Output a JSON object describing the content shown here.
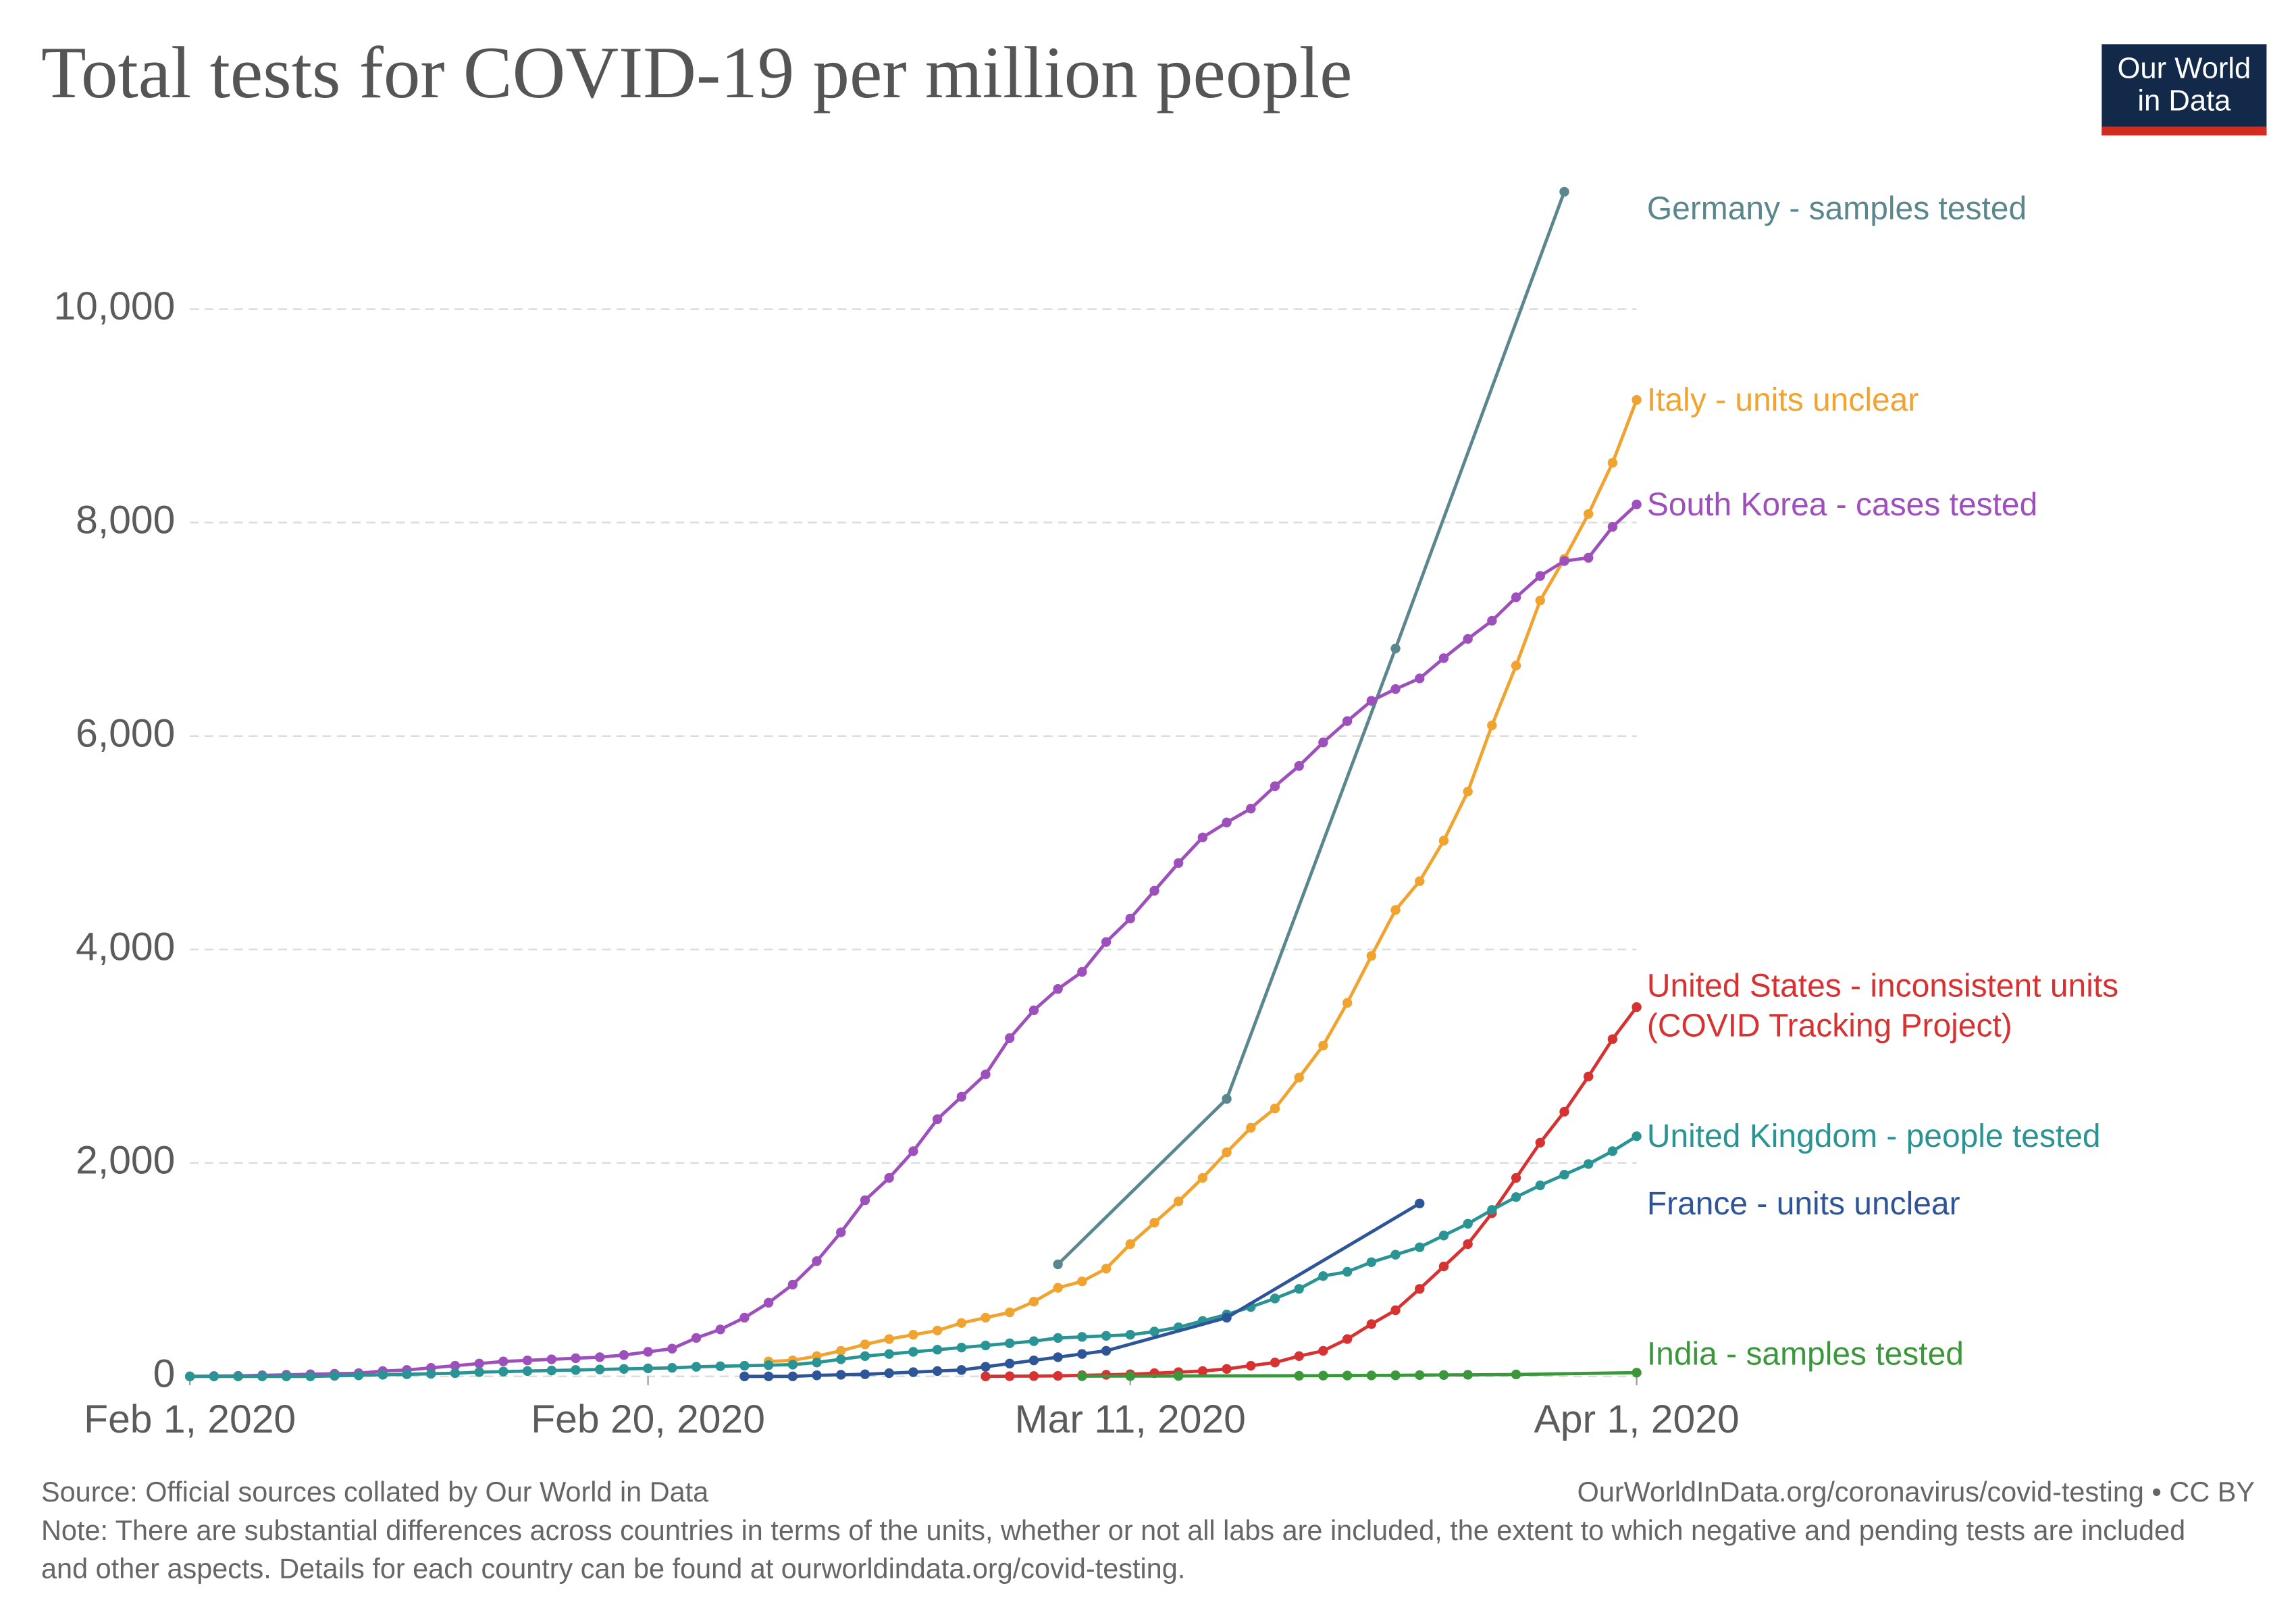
{
  "chart_data": {
    "type": "line",
    "title": "Total tests for COVID-19 per million people",
    "logo": "Our World in Data",
    "source": "Source: Official sources collated by Our World in Data",
    "url": "OurWorldInData.org/coronavirus/covid-testing • CC BY",
    "note": "Note: There are substantial differences across countries in terms of the units, whether or not all labs are included, the extent to which negative and pending tests are included and other aspects. Details for each country can be found at ourworldindata.org/covid-testing.",
    "xlim": [
      "2020-02-01",
      "2020-04-01"
    ],
    "xticks": [
      {
        "value": "2020-02-01",
        "label": "Feb 1, 2020"
      },
      {
        "value": "2020-02-20",
        "label": "Feb 20, 2020"
      },
      {
        "value": "2020-03-11",
        "label": "Mar 11, 2020"
      },
      {
        "value": "2020-04-01",
        "label": "Apr 1, 2020"
      }
    ],
    "ylim": [
      0,
      11400
    ],
    "yticks": [
      0,
      {
        "value": 2000,
        "label": "2,000"
      },
      {
        "value": 4000,
        "label": "4,000"
      },
      {
        "value": 6000,
        "label": "6,000"
      },
      {
        "value": 8000,
        "label": "8,000"
      },
      {
        "value": 10000,
        "label": "10,000"
      }
    ],
    "grid": true,
    "series": [
      {
        "name": "Germany - samples tested",
        "color": "#5a878e",
        "x": [
          "2020-03-08",
          "2020-03-15",
          "2020-03-22",
          "2020-03-29"
        ],
        "values": [
          1050,
          2600,
          6820,
          11100
        ]
      },
      {
        "name": "Italy - units unclear",
        "color": "#f0a32e",
        "x": [
          "2020-02-25",
          "2020-02-26",
          "2020-02-27",
          "2020-02-28",
          "2020-02-29",
          "2020-03-01",
          "2020-03-02",
          "2020-03-03",
          "2020-03-04",
          "2020-03-05",
          "2020-03-06",
          "2020-03-07",
          "2020-03-08",
          "2020-03-09",
          "2020-03-10",
          "2020-03-11",
          "2020-03-12",
          "2020-03-13",
          "2020-03-14",
          "2020-03-15",
          "2020-03-16",
          "2020-03-17",
          "2020-03-18",
          "2020-03-19",
          "2020-03-20",
          "2020-03-21",
          "2020-03-22",
          "2020-03-23",
          "2020-03-24",
          "2020-03-25",
          "2020-03-26",
          "2020-03-27",
          "2020-03-28",
          "2020-03-29",
          "2020-03-30",
          "2020-03-31",
          "2020-04-01"
        ],
        "values": [
          140,
          150,
          190,
          240,
          300,
          350,
          390,
          430,
          500,
          550,
          600,
          700,
          830,
          890,
          1010,
          1240,
          1440,
          1640,
          1860,
          2100,
          2330,
          2510,
          2800,
          3100,
          3500,
          3940,
          4370,
          4640,
          5020,
          5480,
          6100,
          6660,
          7270,
          7660,
          8080,
          8560,
          9150
        ]
      },
      {
        "name": "South Korea - cases tested",
        "color": "#9d4fbb",
        "x": [
          "2020-02-01",
          "2020-02-02",
          "2020-02-03",
          "2020-02-04",
          "2020-02-05",
          "2020-02-06",
          "2020-02-07",
          "2020-02-08",
          "2020-02-09",
          "2020-02-10",
          "2020-02-11",
          "2020-02-12",
          "2020-02-13",
          "2020-02-14",
          "2020-02-15",
          "2020-02-16",
          "2020-02-17",
          "2020-02-18",
          "2020-02-19",
          "2020-02-20",
          "2020-02-21",
          "2020-02-22",
          "2020-02-23",
          "2020-02-24",
          "2020-02-25",
          "2020-02-26",
          "2020-02-27",
          "2020-02-28",
          "2020-02-29",
          "2020-03-01",
          "2020-03-02",
          "2020-03-03",
          "2020-03-04",
          "2020-03-05",
          "2020-03-06",
          "2020-03-07",
          "2020-03-08",
          "2020-03-09",
          "2020-03-10",
          "2020-03-11",
          "2020-03-12",
          "2020-03-13",
          "2020-03-14",
          "2020-03-15",
          "2020-03-16",
          "2020-03-17",
          "2020-03-18",
          "2020-03-19",
          "2020-03-20",
          "2020-03-21",
          "2020-03-22",
          "2020-03-23",
          "2020-03-24",
          "2020-03-25",
          "2020-03-26",
          "2020-03-27",
          "2020-03-28",
          "2020-03-29",
          "2020-03-30",
          "2020-03-31",
          "2020-04-01"
        ],
        "values": [
          0,
          3,
          5,
          10,
          15,
          20,
          25,
          30,
          50,
          60,
          80,
          100,
          120,
          140,
          150,
          160,
          170,
          180,
          200,
          230,
          260,
          360,
          440,
          550,
          690,
          860,
          1080,
          1350,
          1650,
          1860,
          2110,
          2410,
          2620,
          2830,
          3170,
          3430,
          3630,
          3790,
          4070,
          4290,
          4550,
          4810,
          5050,
          5190,
          5320,
          5530,
          5720,
          5940,
          6140,
          6330,
          6440,
          6540,
          6730,
          6910,
          7080,
          7300,
          7500,
          7640,
          7670,
          7960,
          8170
        ]
      },
      {
        "name": "United States - inconsistent units (COVID Tracking Project)",
        "color": "#d73232",
        "x": [
          "2020-03-05",
          "2020-03-06",
          "2020-03-07",
          "2020-03-08",
          "2020-03-09",
          "2020-03-10",
          "2020-03-11",
          "2020-03-12",
          "2020-03-13",
          "2020-03-14",
          "2020-03-15",
          "2020-03-16",
          "2020-03-17",
          "2020-03-18",
          "2020-03-19",
          "2020-03-20",
          "2020-03-21",
          "2020-03-22",
          "2020-03-23",
          "2020-03-24",
          "2020-03-25",
          "2020-03-26",
          "2020-03-27",
          "2020-03-28",
          "2020-03-29",
          "2020-03-30",
          "2020-03-31",
          "2020-04-01"
        ],
        "values": [
          0,
          2,
          3,
          5,
          10,
          15,
          20,
          30,
          40,
          50,
          70,
          100,
          130,
          190,
          240,
          350,
          490,
          620,
          820,
          1030,
          1240,
          1530,
          1860,
          2190,
          2480,
          2810,
          3160,
          3460
        ]
      },
      {
        "name": "United Kingdom - people tested",
        "color": "#2a9494",
        "x": [
          "2020-02-01",
          "2020-02-02",
          "2020-02-03",
          "2020-02-04",
          "2020-02-05",
          "2020-02-06",
          "2020-02-07",
          "2020-02-08",
          "2020-02-09",
          "2020-02-10",
          "2020-02-11",
          "2020-02-12",
          "2020-02-13",
          "2020-02-14",
          "2020-02-15",
          "2020-02-16",
          "2020-02-17",
          "2020-02-18",
          "2020-02-19",
          "2020-02-20",
          "2020-02-21",
          "2020-02-22",
          "2020-02-23",
          "2020-02-24",
          "2020-02-25",
          "2020-02-26",
          "2020-02-27",
          "2020-02-28",
          "2020-02-29",
          "2020-03-01",
          "2020-03-02",
          "2020-03-03",
          "2020-03-04",
          "2020-03-05",
          "2020-03-06",
          "2020-03-07",
          "2020-03-08",
          "2020-03-09",
          "2020-03-10",
          "2020-03-11",
          "2020-03-12",
          "2020-03-13",
          "2020-03-14",
          "2020-03-15",
          "2020-03-16",
          "2020-03-17",
          "2020-03-18",
          "2020-03-19",
          "2020-03-20",
          "2020-03-21",
          "2020-03-22",
          "2020-03-23",
          "2020-03-24",
          "2020-03-25",
          "2020-03-26",
          "2020-03-27",
          "2020-03-28",
          "2020-03-29",
          "2020-03-30",
          "2020-03-31",
          "2020-04-01"
        ],
        "values": [
          0,
          0,
          0,
          0,
          0,
          0,
          5,
          10,
          15,
          20,
          25,
          30,
          40,
          45,
          50,
          55,
          60,
          65,
          70,
          75,
          80,
          90,
          95,
          100,
          105,
          110,
          130,
          160,
          190,
          210,
          230,
          250,
          270,
          290,
          310,
          330,
          360,
          370,
          380,
          390,
          420,
          460,
          520,
          580,
          650,
          730,
          820,
          940,
          980,
          1070,
          1140,
          1210,
          1320,
          1430,
          1560,
          1680,
          1790,
          1890,
          1990,
          2110,
          2250
        ]
      },
      {
        "name": "France - units unclear",
        "color": "#2d5597",
        "x": [
          "2020-02-24",
          "2020-02-25",
          "2020-02-26",
          "2020-02-27",
          "2020-02-28",
          "2020-02-29",
          "2020-03-01",
          "2020-03-02",
          "2020-03-03",
          "2020-03-04",
          "2020-03-05",
          "2020-03-06",
          "2020-03-07",
          "2020-03-08",
          "2020-03-09",
          "2020-03-10",
          "2020-03-15",
          "2020-03-23"
        ],
        "values": [
          0,
          0,
          0,
          10,
          15,
          20,
          30,
          40,
          50,
          60,
          90,
          120,
          150,
          180,
          210,
          240,
          550,
          1620
        ]
      },
      {
        "name": "India - samples tested",
        "color": "#3a983a",
        "x": [
          "2020-03-09",
          "2020-03-11",
          "2020-03-13",
          "2020-03-18",
          "2020-03-19",
          "2020-03-20",
          "2020-03-21",
          "2020-03-22",
          "2020-03-23",
          "2020-03-24",
          "2020-03-25",
          "2020-03-27",
          "2020-04-01"
        ],
        "values": [
          2,
          3,
          4,
          6,
          7,
          8,
          9,
          10,
          12,
          13,
          15,
          18,
          35
        ]
      }
    ]
  }
}
